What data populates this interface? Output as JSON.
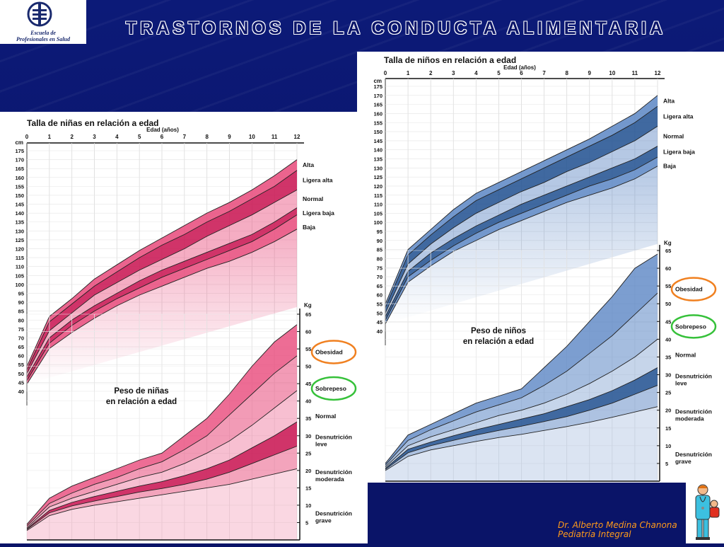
{
  "slide": {
    "title": "TRASTORNOS DE LA CONDUCTA ALIMENTARIA",
    "logo_line1": "Escuela de",
    "logo_line2": "Profesionales en Salud",
    "author_line1": "Dr. Alberto Medina Chanona",
    "author_line2": "Pediatría Integral"
  },
  "colors": {
    "background": "#0a1468",
    "girls_band": "#e8497a",
    "girls_dark": "#c8104f",
    "boys_band": "#5b86c4",
    "boys_dark": "#1e4f8f",
    "highlight_orange": "#f08020",
    "highlight_green": "#36c13a"
  },
  "chart_data": [
    {
      "type": "area",
      "title": "Talla de niñas en relación a edad",
      "xlabel": "Edad (años)",
      "ylabel": "cm",
      "x": [
        0,
        1,
        2,
        3,
        4,
        5,
        6,
        7,
        8,
        9,
        10,
        11,
        12
      ],
      "xlim": [
        0,
        12
      ],
      "ylim": [
        40,
        175
      ],
      "yticks": [
        40,
        45,
        50,
        55,
        60,
        65,
        70,
        75,
        80,
        85,
        90,
        95,
        100,
        105,
        110,
        115,
        120,
        125,
        130,
        135,
        140,
        145,
        150,
        155,
        160,
        165,
        170,
        175
      ],
      "series": [
        {
          "name": "Alta",
          "values": [
            54,
            82,
            92,
            103,
            111,
            119,
            126,
            133,
            140,
            146,
            153,
            161,
            170
          ]
        },
        {
          "name": "Ligera alta",
          "values": [
            52,
            79,
            89,
            99,
            107,
            115,
            122,
            128,
            135,
            141,
            148,
            155,
            164
          ]
        },
        {
          "name": "Normal",
          "values": [
            50,
            74,
            84,
            94,
            101,
            108,
            114,
            120,
            127,
            133,
            139,
            146,
            153
          ]
        },
        {
          "name": "Ligera baja",
          "values": [
            48,
            70,
            80,
            88,
            95,
            102,
            108,
            113,
            118,
            123,
            128,
            135,
            143
          ]
        },
        {
          "name": "Baja",
          "values": [
            46,
            67,
            77,
            85,
            92,
            98,
            104,
            109,
            114,
            119,
            124,
            131,
            139
          ]
        },
        {
          "values": [
            44,
            64,
            73,
            81,
            88,
            94,
            99,
            104,
            109,
            113,
            118,
            124,
            131
          ]
        }
      ]
    },
    {
      "type": "area",
      "title": "Peso de niñas en relación a edad",
      "ylabel": "Kg",
      "x": [
        0,
        1,
        2,
        3,
        4,
        5,
        6,
        7,
        8,
        9,
        10,
        11,
        12
      ],
      "xlim": [
        0,
        12
      ],
      "ylim": [
        0,
        65
      ],
      "yticks": [
        5,
        10,
        15,
        20,
        25,
        30,
        35,
        40,
        45,
        50,
        55,
        60,
        65
      ],
      "annotations": [
        {
          "label": "Obesidad",
          "highlight": "orange"
        },
        {
          "label": "Sobrepeso",
          "highlight": "green"
        }
      ],
      "series": [
        {
          "name": "Obesidad",
          "values": [
            4.5,
            12,
            15.5,
            18,
            20.5,
            23,
            25,
            30,
            35,
            42,
            50,
            57,
            62
          ]
        },
        {
          "name": "Sobrepeso",
          "values": [
            4,
            10.5,
            13.5,
            16,
            18,
            20.5,
            22.5,
            26,
            30,
            36,
            42,
            48,
            53
          ]
        },
        {
          "name": "Normal",
          "values": [
            3.5,
            9.5,
            12,
            14,
            16,
            18,
            19.5,
            22,
            25,
            28.5,
            33,
            38,
            43
          ]
        },
        {
          "name": "Desnutrición leve",
          "values": [
            3.2,
            8.5,
            10.8,
            12.5,
            14,
            15.5,
            16.8,
            18.5,
            20.5,
            23,
            26.5,
            30,
            34
          ]
        },
        {
          "name": "Desnutrición moderada",
          "values": [
            3,
            7.8,
            9.8,
            11.2,
            12.5,
            13.8,
            14.8,
            16,
            17.5,
            19.5,
            22,
            24.5,
            27
          ]
        },
        {
          "name": "Desnutrición grave",
          "values": [
            2.7,
            7,
            8.8,
            10,
            11,
            12,
            13,
            14,
            15,
            16,
            17.5,
            19,
            20.5
          ]
        }
      ]
    },
    {
      "type": "area",
      "title": "Talla de niños en relación a edad",
      "xlabel": "Edad (años)",
      "ylabel": "cm",
      "x": [
        0,
        1,
        2,
        3,
        4,
        5,
        6,
        7,
        8,
        9,
        10,
        11,
        12
      ],
      "xlim": [
        0,
        12
      ],
      "ylim": [
        40,
        175
      ],
      "yticks": [
        40,
        45,
        50,
        55,
        60,
        65,
        70,
        75,
        80,
        85,
        90,
        95,
        100,
        105,
        110,
        115,
        120,
        125,
        130,
        135,
        140,
        145,
        150,
        155,
        160,
        165,
        170,
        175
      ],
      "series": [
        {
          "name": "Alta",
          "values": [
            55,
            85,
            96,
            107,
            116,
            122,
            128,
            134,
            140,
            146,
            153,
            160,
            170
          ]
        },
        {
          "name": "Ligera alta",
          "values": [
            53,
            82,
            93,
            103,
            112,
            118,
            124,
            130,
            136,
            142,
            148,
            155,
            164
          ]
        },
        {
          "name": "Normal",
          "values": [
            50,
            77,
            88,
            97,
            105,
            111,
            117,
            122,
            128,
            133,
            139,
            145,
            153
          ]
        },
        {
          "name": "Ligera baja",
          "values": [
            48,
            73,
            83,
            91,
            98,
            104,
            110,
            115,
            120,
            125,
            130,
            135,
            142
          ]
        },
        {
          "name": "Baja",
          "values": [
            46,
            70,
            79,
            87,
            94,
            100,
            105,
            110,
            115,
            120,
            124,
            129,
            136
          ]
        },
        {
          "values": [
            44,
            67,
            76,
            84,
            90,
            96,
            101,
            106,
            111,
            115,
            119,
            124,
            131
          ]
        }
      ]
    },
    {
      "type": "area",
      "title": "Peso de niños en relación a edad",
      "ylabel": "Kg",
      "x": [
        0,
        1,
        2,
        3,
        4,
        5,
        6,
        7,
        8,
        9,
        10,
        11,
        12
      ],
      "xlim": [
        0,
        12
      ],
      "ylim": [
        0,
        65
      ],
      "yticks": [
        5,
        10,
        15,
        20,
        25,
        30,
        35,
        40,
        45,
        50,
        55,
        60,
        65
      ],
      "annotations": [
        {
          "label": "Obesidad",
          "highlight": "orange"
        },
        {
          "label": "Sobrepeso",
          "highlight": "green"
        }
      ],
      "series": [
        {
          "name": "Obesidad",
          "values": [
            5,
            13,
            16,
            19,
            22,
            24,
            26,
            32,
            38,
            45,
            52,
            60,
            64
          ]
        },
        {
          "name": "Sobrepeso",
          "values": [
            4.5,
            11.5,
            14.5,
            17,
            19.5,
            21.5,
            23.5,
            27,
            31,
            36,
            41,
            47,
            53
          ]
        },
        {
          "name": "Normal",
          "values": [
            4,
            10,
            12.5,
            14.5,
            16.5,
            18.5,
            20,
            22,
            24.5,
            27.5,
            31,
            35,
            40
          ]
        },
        {
          "name": "Desnutrición leve",
          "values": [
            3.6,
            9,
            11,
            12.8,
            14.5,
            16,
            17.5,
            19,
            21,
            23,
            25.5,
            28.5,
            32
          ]
        },
        {
          "name": "Desnutrición moderada",
          "values": [
            3.3,
            8,
            10,
            11.5,
            13,
            14.3,
            15.5,
            16.8,
            18.2,
            20,
            22,
            24.5,
            27
          ]
        },
        {
          "name": "Desnutrición grave",
          "values": [
            3,
            7,
            8.8,
            10,
            11.2,
            12.3,
            13.2,
            14.3,
            15.4,
            16.6,
            18,
            19.5,
            21
          ]
        }
      ]
    }
  ]
}
